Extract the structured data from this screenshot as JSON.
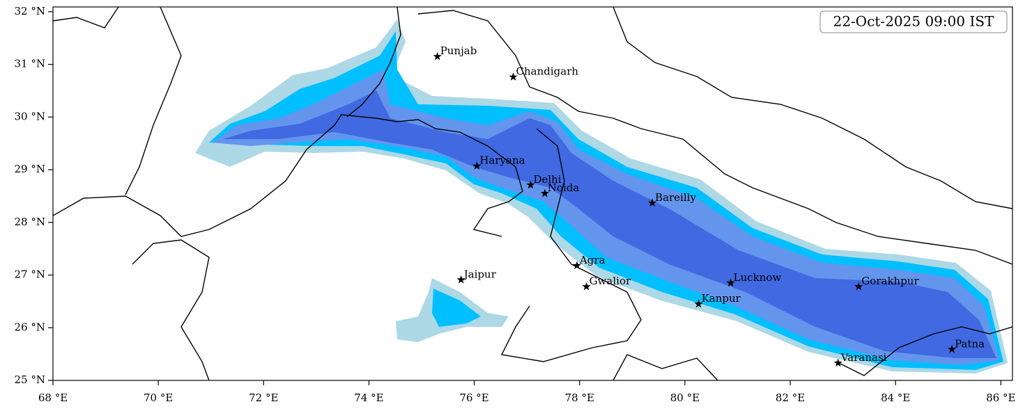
{
  "map": {
    "timestamp": "22-Oct-2025 09:00 IST",
    "xlim": [
      68,
      86.22
    ],
    "ylim": [
      25,
      32.09
    ],
    "xticks": [
      {
        "value": 68,
        "label": "68 °E"
      },
      {
        "value": 70,
        "label": "70 °E"
      },
      {
        "value": 72,
        "label": "72 °E"
      },
      {
        "value": 74,
        "label": "74 °E"
      },
      {
        "value": 76,
        "label": "76 °E"
      },
      {
        "value": 78,
        "label": "78 °E"
      },
      {
        "value": 80,
        "label": "80 °E"
      },
      {
        "value": 82,
        "label": "82 °E"
      },
      {
        "value": 84,
        "label": "84 °E"
      },
      {
        "value": 86,
        "label": "86 °E"
      }
    ],
    "yticks": [
      {
        "value": 25,
        "label": "25 °N"
      },
      {
        "value": 26,
        "label": "26 °N"
      },
      {
        "value": 27,
        "label": "27 °N"
      },
      {
        "value": 28,
        "label": "28 °N"
      },
      {
        "value": 29,
        "label": "29 °N"
      },
      {
        "value": 30,
        "label": "30 °N"
      },
      {
        "value": 31,
        "label": "31 °N"
      },
      {
        "value": 32,
        "label": "32 °N"
      }
    ],
    "cities": [
      {
        "name": "Punjab",
        "lon": 75.3,
        "lat": 31.15
      },
      {
        "name": "Chandigarh",
        "lon": 76.74,
        "lat": 30.76
      },
      {
        "name": "Haryana",
        "lon": 76.05,
        "lat": 29.07
      },
      {
        "name": "Delhi",
        "lon": 77.07,
        "lat": 28.71
      },
      {
        "name": "Noida",
        "lon": 77.34,
        "lat": 28.55
      },
      {
        "name": "Bareilly",
        "lon": 79.38,
        "lat": 28.37
      },
      {
        "name": "Agra",
        "lon": 77.95,
        "lat": 27.18
      },
      {
        "name": "Jaipur",
        "lon": 75.75,
        "lat": 26.91
      },
      {
        "name": "Gwalior",
        "lon": 78.13,
        "lat": 26.78
      },
      {
        "name": "Lucknow",
        "lon": 80.87,
        "lat": 26.85
      },
      {
        "name": "Kanpur",
        "lon": 80.26,
        "lat": 26.45
      },
      {
        "name": "Gorakhpur",
        "lon": 83.3,
        "lat": 26.78
      },
      {
        "name": "Varanasi",
        "lon": 82.91,
        "lat": 25.33
      },
      {
        "name": "Patna",
        "lon": 85.07,
        "lat": 25.59
      }
    ]
  }
}
